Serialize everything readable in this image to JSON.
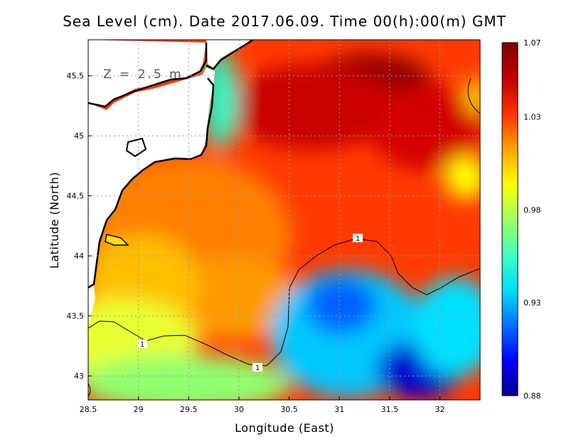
{
  "title": "Sea Level (cm). Date 2017.06.09. Time 00(h):00(m) GMT",
  "depth_label": "Z = 2.5 m",
  "contour_label": "1",
  "chart_data": {
    "type": "heatmap",
    "xlabel": "Longitude (East)",
    "ylabel": "Latitude (North)",
    "xlim": [
      28.5,
      32.4
    ],
    "ylim": [
      42.8,
      45.8
    ],
    "x_ticks": [
      "28.5",
      "29",
      "29.5",
      "30",
      "30.5",
      "31",
      "31.5",
      "32"
    ],
    "y_ticks": [
      "43",
      "43.5",
      "44",
      "44.5",
      "45",
      "45.5"
    ],
    "colorbar": {
      "min": 0.88,
      "max": 1.07,
      "tick_labels": [
        "1.07",
        "1.03",
        "0.98",
        "0.93",
        "0.88"
      ],
      "colors": [
        "#00008f",
        "#0000ff",
        "#0070ff",
        "#00dfff",
        "#40ffbf",
        "#a0ff60",
        "#ffff00",
        "#ffa000",
        "#ff3000",
        "#c00000",
        "#800000"
      ]
    },
    "grid": true,
    "contour_level": 1.0
  },
  "colors": {
    "land": "#ffffff",
    "coastline": "#000000",
    "grid": "#999999"
  }
}
